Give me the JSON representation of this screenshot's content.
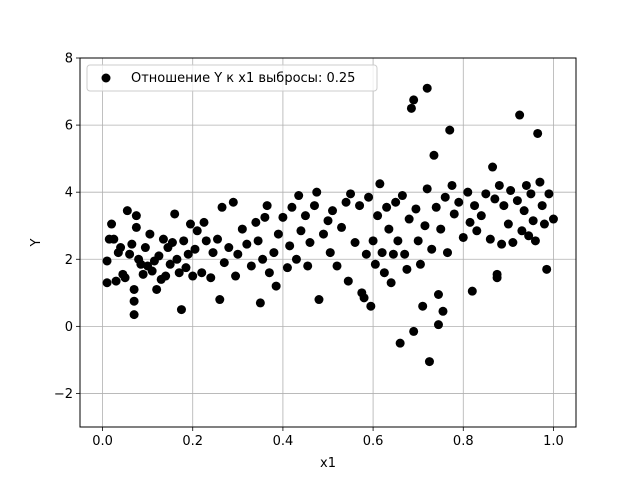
{
  "chart_data": {
    "type": "scatter",
    "title": "",
    "xlabel": "x1",
    "ylabel": "Y",
    "xlim": [
      -0.05,
      1.05
    ],
    "ylim": [
      -3,
      8
    ],
    "xticks": [
      "0.0",
      "0.2",
      "0.4",
      "0.6",
      "0.8",
      "1.0"
    ],
    "yticks": [
      "−2",
      "0",
      "2",
      "4",
      "6",
      "8"
    ],
    "grid": true,
    "legend": {
      "placement": "top-left",
      "entries": [
        "Отношение Y к x1 выбросы: 0.25"
      ]
    },
    "series": [
      {
        "name": "Отношение Y к x1 выбросы: 0.25",
        "color": "#000000",
        "points": [
          [
            0.01,
            1.3
          ],
          [
            0.01,
            1.95
          ],
          [
            0.015,
            2.6
          ],
          [
            0.02,
            3.05
          ],
          [
            0.025,
            2.6
          ],
          [
            0.03,
            1.35
          ],
          [
            0.035,
            2.2
          ],
          [
            0.04,
            2.35
          ],
          [
            0.045,
            1.55
          ],
          [
            0.05,
            1.45
          ],
          [
            0.055,
            3.45
          ],
          [
            0.06,
            2.15
          ],
          [
            0.065,
            2.45
          ],
          [
            0.07,
            1.1
          ],
          [
            0.07,
            0.75
          ],
          [
            0.07,
            0.35
          ],
          [
            0.075,
            3.3
          ],
          [
            0.075,
            2.95
          ],
          [
            0.08,
            2.0
          ],
          [
            0.085,
            1.85
          ],
          [
            0.09,
            1.55
          ],
          [
            0.095,
            2.35
          ],
          [
            0.1,
            1.8
          ],
          [
            0.105,
            2.75
          ],
          [
            0.11,
            1.65
          ],
          [
            0.115,
            1.95
          ],
          [
            0.12,
            1.1
          ],
          [
            0.125,
            2.1
          ],
          [
            0.13,
            1.4
          ],
          [
            0.135,
            2.6
          ],
          [
            0.14,
            1.5
          ],
          [
            0.145,
            2.35
          ],
          [
            0.15,
            1.85
          ],
          [
            0.155,
            2.5
          ],
          [
            0.16,
            3.35
          ],
          [
            0.165,
            2.0
          ],
          [
            0.17,
            1.6
          ],
          [
            0.175,
            0.5
          ],
          [
            0.18,
            2.55
          ],
          [
            0.185,
            1.75
          ],
          [
            0.19,
            2.15
          ],
          [
            0.195,
            3.05
          ],
          [
            0.2,
            1.5
          ],
          [
            0.205,
            2.3
          ],
          [
            0.21,
            2.85
          ],
          [
            0.22,
            1.6
          ],
          [
            0.225,
            3.1
          ],
          [
            0.23,
            2.55
          ],
          [
            0.24,
            1.45
          ],
          [
            0.245,
            2.2
          ],
          [
            0.255,
            2.6
          ],
          [
            0.26,
            0.8
          ],
          [
            0.265,
            3.55
          ],
          [
            0.27,
            1.9
          ],
          [
            0.28,
            2.35
          ],
          [
            0.29,
            3.7
          ],
          [
            0.295,
            1.5
          ],
          [
            0.3,
            2.15
          ],
          [
            0.31,
            2.9
          ],
          [
            0.32,
            2.45
          ],
          [
            0.33,
            1.8
          ],
          [
            0.34,
            3.1
          ],
          [
            0.345,
            2.55
          ],
          [
            0.35,
            0.7
          ],
          [
            0.355,
            2.0
          ],
          [
            0.36,
            3.25
          ],
          [
            0.365,
            3.6
          ],
          [
            0.37,
            1.6
          ],
          [
            0.38,
            2.2
          ],
          [
            0.385,
            1.2
          ],
          [
            0.39,
            2.75
          ],
          [
            0.4,
            3.25
          ],
          [
            0.41,
            1.75
          ],
          [
            0.415,
            2.4
          ],
          [
            0.42,
            3.55
          ],
          [
            0.43,
            2.0
          ],
          [
            0.435,
            3.9
          ],
          [
            0.44,
            2.85
          ],
          [
            0.45,
            3.3
          ],
          [
            0.455,
            1.8
          ],
          [
            0.46,
            2.5
          ],
          [
            0.47,
            3.6
          ],
          [
            0.475,
            4.0
          ],
          [
            0.48,
            0.8
          ],
          [
            0.49,
            2.75
          ],
          [
            0.5,
            3.15
          ],
          [
            0.505,
            2.2
          ],
          [
            0.51,
            3.45
          ],
          [
            0.52,
            1.8
          ],
          [
            0.53,
            2.95
          ],
          [
            0.54,
            3.7
          ],
          [
            0.545,
            1.35
          ],
          [
            0.55,
            3.95
          ],
          [
            0.56,
            2.5
          ],
          [
            0.57,
            3.6
          ],
          [
            0.575,
            1.0
          ],
          [
            0.58,
            0.85
          ],
          [
            0.585,
            2.15
          ],
          [
            0.59,
            3.85
          ],
          [
            0.595,
            0.6
          ],
          [
            0.6,
            2.55
          ],
          [
            0.605,
            1.85
          ],
          [
            0.61,
            3.3
          ],
          [
            0.615,
            4.25
          ],
          [
            0.62,
            2.2
          ],
          [
            0.625,
            1.6
          ],
          [
            0.63,
            3.55
          ],
          [
            0.635,
            2.9
          ],
          [
            0.64,
            1.3
          ],
          [
            0.645,
            2.15
          ],
          [
            0.65,
            3.7
          ],
          [
            0.655,
            2.55
          ],
          [
            0.66,
            -0.5
          ],
          [
            0.665,
            3.9
          ],
          [
            0.67,
            2.15
          ],
          [
            0.675,
            1.7
          ],
          [
            0.68,
            3.2
          ],
          [
            0.685,
            6.5
          ],
          [
            0.69,
            6.75
          ],
          [
            0.69,
            -0.15
          ],
          [
            0.695,
            3.5
          ],
          [
            0.7,
            2.55
          ],
          [
            0.705,
            1.85
          ],
          [
            0.71,
            0.6
          ],
          [
            0.715,
            3.0
          ],
          [
            0.72,
            7.1
          ],
          [
            0.72,
            4.1
          ],
          [
            0.725,
            -1.05
          ],
          [
            0.73,
            2.3
          ],
          [
            0.735,
            5.1
          ],
          [
            0.74,
            3.55
          ],
          [
            0.745,
            0.05
          ],
          [
            0.745,
            0.95
          ],
          [
            0.75,
            2.9
          ],
          [
            0.755,
            0.45
          ],
          [
            0.76,
            3.85
          ],
          [
            0.765,
            2.2
          ],
          [
            0.77,
            5.85
          ],
          [
            0.775,
            4.2
          ],
          [
            0.78,
            3.35
          ],
          [
            0.79,
            3.7
          ],
          [
            0.8,
            2.65
          ],
          [
            0.81,
            4.0
          ],
          [
            0.815,
            3.1
          ],
          [
            0.82,
            1.05
          ],
          [
            0.825,
            3.6
          ],
          [
            0.83,
            2.85
          ],
          [
            0.84,
            3.3
          ],
          [
            0.85,
            3.95
          ],
          [
            0.86,
            2.6
          ],
          [
            0.865,
            4.75
          ],
          [
            0.87,
            3.8
          ],
          [
            0.875,
            1.45
          ],
          [
            0.875,
            1.55
          ],
          [
            0.88,
            4.2
          ],
          [
            0.885,
            2.45
          ],
          [
            0.89,
            3.6
          ],
          [
            0.9,
            3.05
          ],
          [
            0.905,
            4.05
          ],
          [
            0.91,
            2.5
          ],
          [
            0.92,
            3.75
          ],
          [
            0.925,
            6.3
          ],
          [
            0.93,
            2.85
          ],
          [
            0.935,
            3.45
          ],
          [
            0.94,
            4.2
          ],
          [
            0.945,
            2.7
          ],
          [
            0.95,
            3.95
          ],
          [
            0.955,
            3.15
          ],
          [
            0.96,
            2.55
          ],
          [
            0.965,
            5.75
          ],
          [
            0.97,
            4.3
          ],
          [
            0.975,
            3.6
          ],
          [
            0.98,
            3.05
          ],
          [
            0.985,
            1.7
          ],
          [
            0.99,
            3.95
          ],
          [
            1.0,
            3.2
          ]
        ]
      }
    ]
  }
}
